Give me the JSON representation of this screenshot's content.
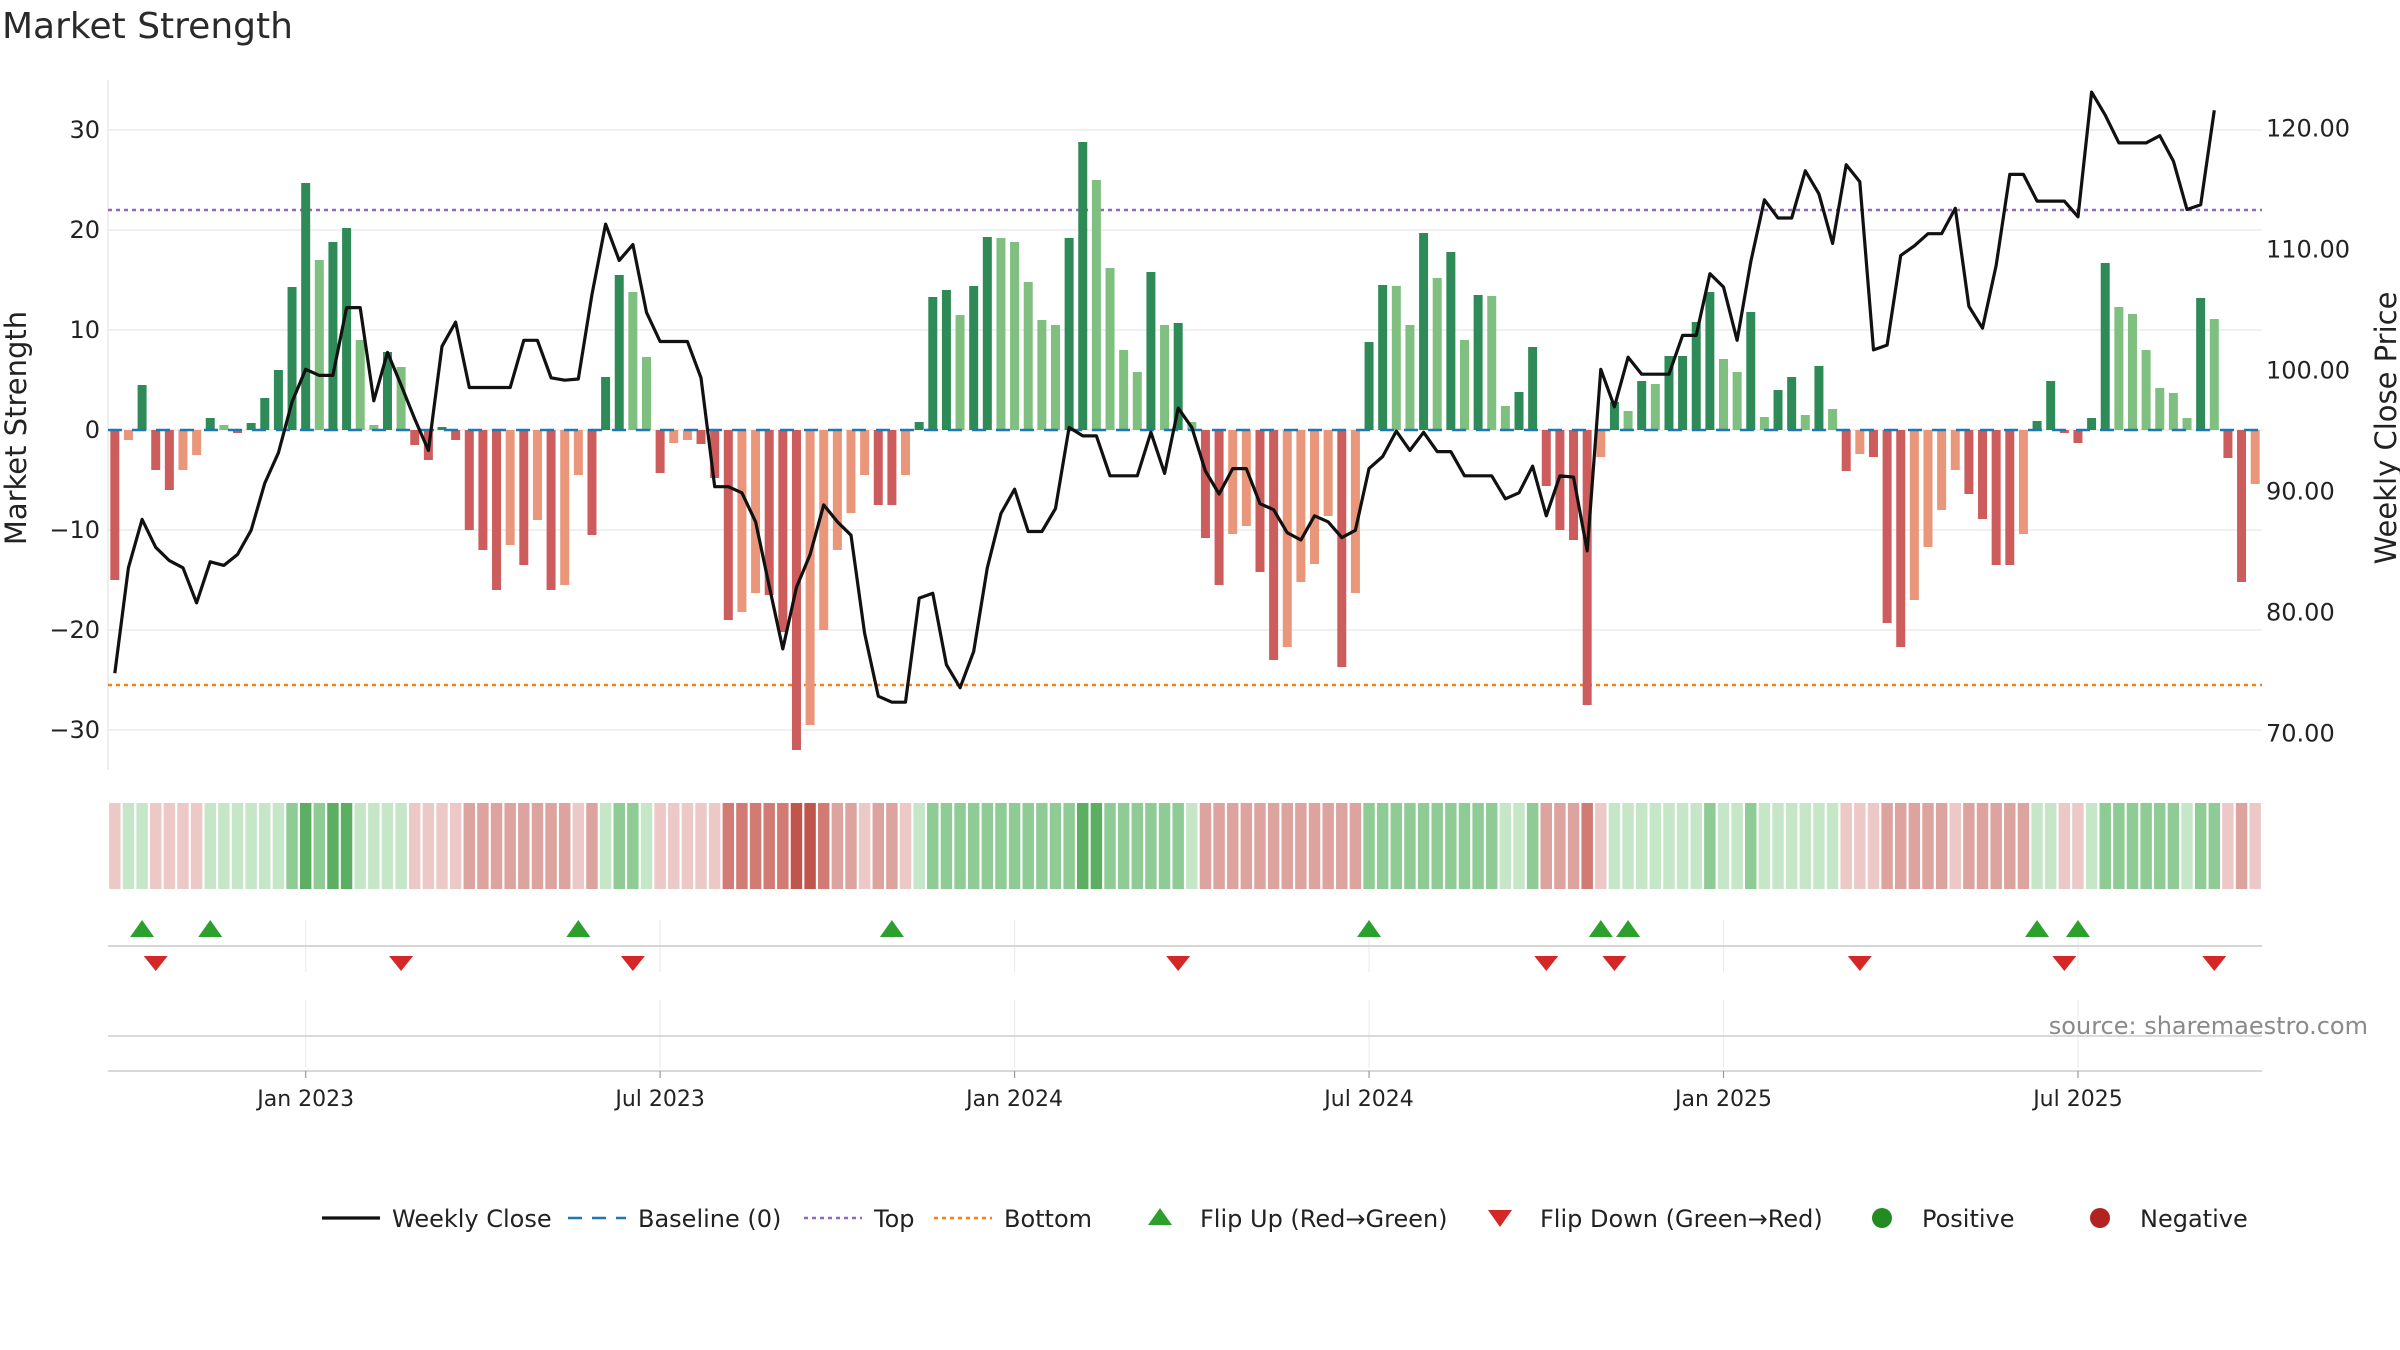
{
  "colors": {
    "pos_dark": "#2e8b57",
    "pos_light": "#7fbf7f",
    "neg_dark": "#cd5c5c",
    "neg_light": "#e9967a",
    "line": "#111111",
    "baseline": "#1f77b4",
    "top": "#9467bd",
    "bottom": "#ff7f0e",
    "flip_up": "#2ca02c",
    "flip_down": "#d62728",
    "positive": "#228b22",
    "negative": "#b22222",
    "grid": "#e6e6e6"
  },
  "chart_data": {
    "type": "bar",
    "title": "Market Strength",
    "ylabel_left": "Market Strength",
    "ylabel_right": "Weekly Close Price",
    "y_left_range": [
      -34,
      35
    ],
    "y_left_ticks": [
      30,
      20,
      10,
      0,
      -10,
      -20,
      -30
    ],
    "y_left_tick_labels": [
      "30",
      "20",
      "10",
      "0",
      "−10",
      "−20",
      "−30"
    ],
    "y_right_range": [
      67,
      124
    ],
    "y_right_ticks": [
      120,
      110,
      100,
      90,
      80,
      70
    ],
    "y_right_tick_labels": [
      "120.00",
      "110.00",
      "100.00",
      "90.00",
      "80.00",
      "70.00"
    ],
    "x_ticks": [
      {
        "label": "Jan 2023",
        "week": 14.5
      },
      {
        "label": "Jul 2023",
        "week": 40.5
      },
      {
        "label": "Jan 2024",
        "week": 66.5
      },
      {
        "label": "Jul 2024",
        "week": 92.5
      },
      {
        "label": "Jan 2025",
        "week": 118.5
      },
      {
        "label": "Jul 2025",
        "week": 144.5
      }
    ],
    "top_line": 22,
    "bottom_line": -25.5,
    "strength": [
      -15,
      -1,
      4.5,
      -4,
      -6,
      -4,
      -2.5,
      1.2,
      0.5,
      -0.3,
      0.7,
      3.2,
      6,
      14.3,
      24.7,
      17,
      18.8,
      20.2,
      9,
      0.5,
      7.8,
      6.3,
      -1.5,
      -3,
      0.3,
      -1,
      -10,
      -12,
      -16,
      -11.5,
      -13.5,
      -9,
      -16,
      -15.5,
      -4.5,
      -10.5,
      5.3,
      15.5,
      13.8,
      7.3,
      -4.3,
      -1.3,
      -1,
      -1.4,
      -4.8,
      -19,
      -18.2,
      -16.3,
      -16.5,
      -20.2,
      -32,
      -29.5,
      -20,
      -12,
      -8.3,
      -4.5,
      -7.5,
      -7.5,
      -4.5,
      0.8,
      13.3,
      14,
      11.5,
      14.4,
      19.3,
      19.2,
      18.8,
      14.8,
      11,
      10.5,
      19.2,
      28.8,
      25,
      16.2,
      8,
      5.8,
      15.8,
      10.5,
      10.7,
      0.8,
      -10.8,
      -15.5,
      -10.4,
      -9.6,
      -14.2,
      -23,
      -21.7,
      -15.2,
      -13.4,
      -8.6,
      -23.7,
      -16.3,
      8.8,
      14.5,
      14.4,
      10.5,
      19.7,
      15.2,
      17.8,
      9,
      13.5,
      13.4,
      2.4,
      3.8,
      8.3,
      -5.6,
      -10,
      -11,
      -27.5,
      -2.7,
      2.8,
      1.9,
      4.9,
      4.6,
      7.4,
      7.4,
      10.8,
      13.8,
      7.1,
      5.8,
      11.8,
      1.3,
      4,
      5.3,
      1.5,
      6.4,
      2.1,
      -4.1,
      -2.4,
      -2.7,
      -19.3,
      -21.7,
      -17,
      -11.7,
      -8,
      -4,
      -6.4,
      -8.9,
      -13.5,
      -13.5,
      -10.4,
      0.9,
      4.9,
      -0.3,
      -1.3,
      1.2,
      16.7,
      12.3,
      11.6,
      8,
      4.2,
      3.7,
      1.2,
      13.2,
      11.1,
      -2.8,
      -15.2,
      -5.4
    ],
    "weekly_close": [
      75,
      83.7,
      87.7,
      85.4,
      84.3,
      83.7,
      80.8,
      84.2,
      83.9,
      84.8,
      86.8,
      90.7,
      93.2,
      97.4,
      100.1,
      99.6,
      99.6,
      105.2,
      105.2,
      97.5,
      101.5,
      98.8,
      96,
      93.4,
      102,
      104,
      98.6,
      98.6,
      98.6,
      98.6,
      102.5,
      102.5,
      99.4,
      99.2,
      99.3,
      106.3,
      112.1,
      109.1,
      110.4,
      104.8,
      102.4,
      102.4,
      102.4,
      99.4,
      90.4,
      90.4,
      89.9,
      87.5,
      82.2,
      77,
      82.1,
      84.8,
      88.9,
      87.5,
      86.4,
      78.3,
      73.1,
      72.6,
      72.6,
      81.2,
      81.6,
      75.7,
      73.8,
      76.8,
      83.7,
      88.2,
      90.2,
      86.7,
      86.7,
      88.6,
      95.3,
      94.6,
      94.6,
      91.3,
      91.3,
      91.3,
      94.9,
      91.5,
      96.9,
      95.3,
      91.7,
      89.8,
      91.9,
      91.9,
      89,
      88.5,
      86.6,
      86,
      88,
      87.5,
      86.2,
      86.8,
      91.9,
      92.9,
      95,
      93.4,
      94.9,
      93.3,
      93.3,
      91.3,
      91.3,
      91.3,
      89.4,
      89.9,
      92.1,
      88,
      91.3,
      91.2,
      85.1,
      100.1,
      97,
      101.1,
      99.7,
      99.7,
      99.7,
      102.9,
      102.9,
      108,
      106.9,
      102.5,
      109,
      114.1,
      112.6,
      112.6,
      116.5,
      114.6,
      110.5,
      117,
      115.6,
      101.7,
      102.1,
      109.5,
      110.3,
      111.3,
      111.3,
      113.4,
      105.3,
      103.5,
      108.7,
      116.2,
      116.2,
      114,
      114,
      114,
      112.7,
      123,
      121.1,
      118.8,
      118.8,
      118.8,
      119.4,
      117.3,
      113.3,
      113.7,
      121.5
    ],
    "heat_levels": [
      -1,
      1,
      1,
      -1,
      -1,
      -1,
      -1,
      1,
      1,
      1,
      1,
      1,
      1,
      2,
      3,
      2,
      3,
      3,
      1,
      1,
      1,
      1,
      -1,
      -1,
      -1,
      -1,
      -2,
      -2,
      -2,
      -2,
      -2,
      -2,
      -2,
      -2,
      -1,
      -2,
      1,
      2,
      2,
      1,
      -1,
      -1,
      -1,
      -1,
      -1,
      -3,
      -3,
      -3,
      -3,
      -3,
      -4,
      -4,
      -3,
      -2,
      -2,
      -1,
      -2,
      -2,
      -1,
      1,
      2,
      2,
      2,
      2,
      2,
      2,
      2,
      2,
      2,
      2,
      2,
      3,
      3,
      2,
      2,
      2,
      2,
      2,
      2,
      1,
      -2,
      -2,
      -2,
      -2,
      -2,
      -2,
      -2,
      -2,
      -2,
      -2,
      -2,
      -2,
      2,
      2,
      2,
      2,
      2,
      2,
      2,
      2,
      2,
      2,
      1,
      1,
      2,
      -2,
      -2,
      -2,
      -3,
      -1,
      1,
      1,
      1,
      1,
      1,
      1,
      1,
      2,
      1,
      1,
      2,
      1,
      1,
      1,
      1,
      1,
      1,
      -1,
      -1,
      -1,
      -2,
      -2,
      -2,
      -2,
      -2,
      -1,
      -2,
      -2,
      -2,
      -2,
      -2,
      1,
      1,
      -1,
      -1,
      1,
      2,
      2,
      2,
      2,
      2,
      2,
      1,
      2,
      2,
      -1,
      -2,
      -1
    ],
    "flips_up": [
      2,
      7,
      34,
      57,
      92,
      109,
      111,
      141,
      144
    ],
    "flips_down": [
      3,
      21,
      38,
      78,
      105,
      110,
      128,
      143,
      154
    ],
    "legend": [
      {
        "key": "weekly_close",
        "label": "Weekly Close",
        "symbol": "line-solid"
      },
      {
        "key": "baseline",
        "label": "Baseline (0)",
        "symbol": "line-dash"
      },
      {
        "key": "top",
        "label": "Top",
        "symbol": "line-dot"
      },
      {
        "key": "bottom",
        "label": "Bottom",
        "symbol": "line-dot"
      },
      {
        "key": "flip_up",
        "label": "Flip Up (Red→Green)",
        "symbol": "triangle-up"
      },
      {
        "key": "flip_down",
        "label": "Flip Down (Green→Red)",
        "symbol": "triangle-down"
      },
      {
        "key": "positive",
        "label": "Positive",
        "symbol": "circle"
      },
      {
        "key": "negative",
        "label": "Negative",
        "symbol": "circle"
      }
    ],
    "legend_position": "bottom-center",
    "source": "source: sharemaestro.com"
  }
}
